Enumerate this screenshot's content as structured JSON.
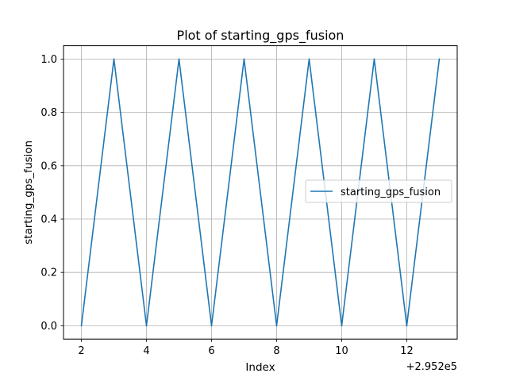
{
  "chart_data": {
    "type": "line",
    "title": "Plot of starting_gps_fusion",
    "xlabel": "Index",
    "ylabel": "starting_gps_fusion",
    "x_offset_label": "+2.952e5",
    "xlim": [
      1.45,
      13.55
    ],
    "ylim": [
      -0.05,
      1.05
    ],
    "xticks": [
      2,
      4,
      6,
      8,
      10,
      12
    ],
    "xtick_labels": [
      "2",
      "4",
      "6",
      "8",
      "10",
      "12"
    ],
    "yticks": [
      0.0,
      0.2,
      0.4,
      0.6,
      0.8,
      1.0
    ],
    "ytick_labels": [
      "0.0",
      "0.2",
      "0.4",
      "0.6",
      "0.8",
      "1.0"
    ],
    "grid": true,
    "legend_position": "center-right",
    "series": [
      {
        "name": "starting_gps_fusion",
        "color": "#1f77b4",
        "x": [
          2,
          3,
          4,
          5,
          6,
          7,
          8,
          9,
          10,
          11,
          12,
          13
        ],
        "y": [
          0,
          1,
          0,
          1,
          0,
          1,
          0,
          1,
          0,
          1,
          0,
          1
        ]
      }
    ]
  }
}
